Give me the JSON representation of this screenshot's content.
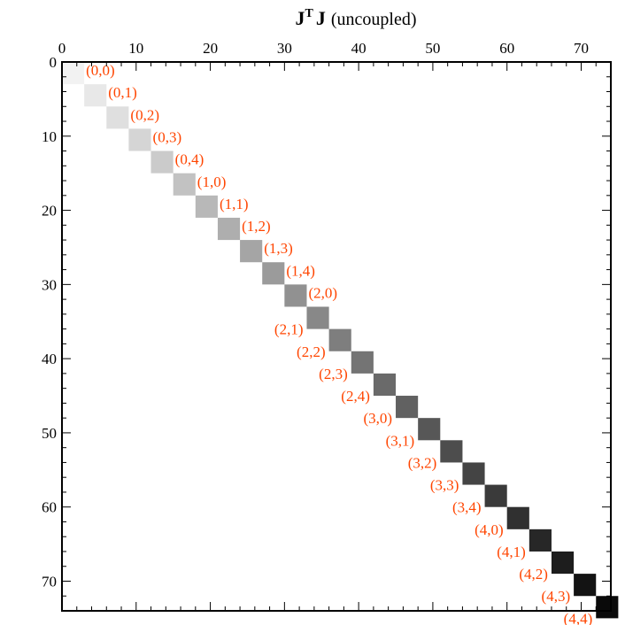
{
  "chart_data": {
    "type": "heatmap",
    "title": {
      "main": "J",
      "superscript": "T",
      "main2": "J",
      "rest": "(uncoupled)"
    },
    "x_ticks": [
      "0",
      "10",
      "20",
      "30",
      "40",
      "50",
      "60",
      "70"
    ],
    "y_ticks": [
      "0",
      "10",
      "20",
      "30",
      "40",
      "50",
      "60",
      "70"
    ],
    "xlim": [
      0,
      74
    ],
    "ylim": [
      0,
      74
    ],
    "block_size": 3,
    "blocks": [
      {
        "label": "(0,0)",
        "start": 0,
        "intensity": 0.0
      },
      {
        "label": "(0,1)",
        "start": 3,
        "intensity": 0.04
      },
      {
        "label": "(0,2)",
        "start": 6,
        "intensity": 0.08
      },
      {
        "label": "(0,3)",
        "start": 9,
        "intensity": 0.12
      },
      {
        "label": "(0,4)",
        "start": 12,
        "intensity": 0.16
      },
      {
        "label": "(1,0)",
        "start": 15,
        "intensity": 0.2
      },
      {
        "label": "(1,1)",
        "start": 18,
        "intensity": 0.24
      },
      {
        "label": "(1,2)",
        "start": 21,
        "intensity": 0.28
      },
      {
        "label": "(1,3)",
        "start": 24,
        "intensity": 0.32
      },
      {
        "label": "(1,4)",
        "start": 27,
        "intensity": 0.36
      },
      {
        "label": "(2,0)",
        "start": 30,
        "intensity": 0.4
      },
      {
        "label": "(2,1)",
        "start": 33,
        "intensity": 0.44
      },
      {
        "label": "(2,2)",
        "start": 36,
        "intensity": 0.48
      },
      {
        "label": "(2,3)",
        "start": 39,
        "intensity": 0.52
      },
      {
        "label": "(2,4)",
        "start": 42,
        "intensity": 0.56
      },
      {
        "label": "(3,0)",
        "start": 45,
        "intensity": 0.6
      },
      {
        "label": "(3,1)",
        "start": 48,
        "intensity": 0.64
      },
      {
        "label": "(3,2)",
        "start": 51,
        "intensity": 0.68
      },
      {
        "label": "(3,3)",
        "start": 54,
        "intensity": 0.72
      },
      {
        "label": "(3,4)",
        "start": 57,
        "intensity": 0.76
      },
      {
        "label": "(4,0)",
        "start": 60,
        "intensity": 0.8
      },
      {
        "label": "(4,1)",
        "start": 63,
        "intensity": 0.84
      },
      {
        "label": "(4,2)",
        "start": 66,
        "intensity": 0.88
      },
      {
        "label": "(4,3)",
        "start": 69,
        "intensity": 0.92
      },
      {
        "label": "(4,4)",
        "start": 72,
        "intensity": 0.96
      }
    ],
    "colors": {
      "label": "#ff4500",
      "grayscale_light": "#f2f2f2",
      "grayscale_dark": "#000000",
      "axes": "#000000"
    },
    "grid": false
  }
}
